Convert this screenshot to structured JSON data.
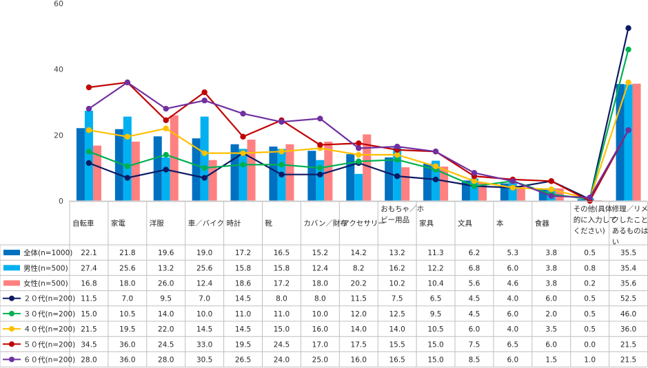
{
  "chart_data": {
    "type": "bar",
    "title": "",
    "xlabel": "",
    "ylabel": "",
    "ylim": [
      0,
      60
    ],
    "yticks": [
      0,
      20,
      40,
      60
    ],
    "categories": [
      [
        "自転車"
      ],
      [
        "家電"
      ],
      [
        "洋服"
      ],
      [
        "車／バイク"
      ],
      [
        "時計"
      ],
      [
        "靴"
      ],
      [
        "カバン／財布"
      ],
      [
        "アクセサリー"
      ],
      [
        "おもちゃ／ホ",
        "ビー用品"
      ],
      [
        "家具"
      ],
      [
        "文具"
      ],
      [
        "本"
      ],
      [
        "食器"
      ],
      [
        "その他(具体",
        "的に入力して",
        "ください)"
      ],
      [
        "修理／リメイ",
        "クしたことが",
        "あるものはな",
        "い"
      ]
    ],
    "bar_series": [
      {
        "name": "全体(n=1000)",
        "color": "#0070c0",
        "values": [
          22.1,
          21.8,
          19.6,
          19.0,
          17.2,
          16.5,
          15.2,
          14.2,
          13.2,
          11.3,
          6.2,
          5.3,
          3.8,
          0.5,
          35.5
        ]
      },
      {
        "name": "男性(n=500)",
        "color": "#00b0f0",
        "values": [
          27.4,
          25.6,
          13.2,
          25.6,
          15.8,
          15.8,
          12.4,
          8.2,
          16.2,
          12.2,
          6.8,
          6.0,
          3.8,
          0.8,
          35.4
        ]
      },
      {
        "name": "女性(n=500)",
        "color": "#ff8080",
        "values": [
          16.8,
          18.0,
          26.0,
          12.4,
          18.6,
          17.2,
          18.0,
          20.2,
          10.2,
          10.4,
          5.6,
          4.6,
          3.8,
          0.2,
          35.6
        ]
      }
    ],
    "line_series": [
      {
        "name": "２０代(n=200)",
        "color": "#0d1a63",
        "values": [
          11.5,
          7.0,
          9.5,
          7.0,
          14.5,
          8.0,
          8.0,
          11.5,
          7.5,
          6.5,
          4.5,
          4.0,
          6.0,
          0.5,
          52.5
        ]
      },
      {
        "name": "３０代(n=200)",
        "color": "#00b050",
        "values": [
          15.0,
          10.5,
          14.0,
          10.0,
          11.0,
          11.0,
          10.0,
          12.0,
          12.5,
          9.5,
          4.5,
          6.0,
          2.0,
          0.5,
          46.0
        ]
      },
      {
        "name": "４０代(n=200)",
        "color": "#ffc000",
        "values": [
          21.5,
          19.5,
          22.0,
          14.5,
          14.5,
          15.0,
          16.0,
          14.0,
          14.0,
          10.5,
          6.0,
          4.0,
          3.5,
          0.5,
          36.0
        ]
      },
      {
        "name": "５０代(n=200)",
        "color": "#c00000",
        "values": [
          34.5,
          36.0,
          24.5,
          33.0,
          19.5,
          24.5,
          17.0,
          17.5,
          15.5,
          15.0,
          7.5,
          6.5,
          6.0,
          0.0,
          21.5
        ]
      },
      {
        "name": "６０代(n=200)",
        "color": "#7030a0",
        "values": [
          28.0,
          36.0,
          28.0,
          30.5,
          26.5,
          24.0,
          25.0,
          16.0,
          16.5,
          15.0,
          8.5,
          6.0,
          1.5,
          1.0,
          21.5
        ]
      }
    ]
  }
}
